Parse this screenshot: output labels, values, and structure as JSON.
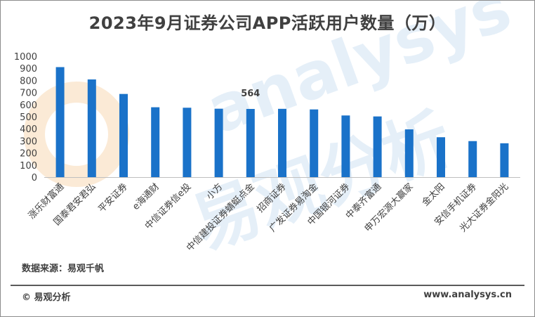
{
  "title": "2023年9月证券公司APP活跃用户数量（万）",
  "source": "数据来源：易观千帆",
  "footer": {
    "brand": "© 易观分析",
    "url": "www.analysys.cn"
  },
  "watermark": {
    "line1": "analysys",
    "line2": "易观分析"
  },
  "colors": {
    "bar": "#1a72c9",
    "axis": "#bfbfbf",
    "text": "#404040",
    "sun": "#f8d9b4"
  },
  "chart_data": {
    "type": "bar",
    "categories": [
      "涨乐财富通",
      "国泰君安君弘",
      "平安证券",
      "e海通财",
      "中信证券信e投",
      "小方",
      "中信建投证券蜻蜓点金",
      "招商证券",
      "广发证券易淘金",
      "中国银河证券",
      "中泰齐富通",
      "申万宏源大赢家",
      "金太阳",
      "安信手机证券",
      "光大证券金阳光"
    ],
    "values": [
      910,
      808,
      688,
      578,
      574,
      566,
      564,
      565,
      560,
      510,
      502,
      395,
      330,
      298,
      280
    ],
    "data_labels": [
      {
        "index": 6,
        "text": "564"
      }
    ],
    "ylim": [
      0,
      1000
    ],
    "yticks": [
      "0",
      "100",
      "200",
      "300",
      "400",
      "500",
      "600",
      "700",
      "800",
      "900",
      "1000"
    ],
    "xlabel": "",
    "ylabel": "",
    "grid": false,
    "legend": "none"
  }
}
